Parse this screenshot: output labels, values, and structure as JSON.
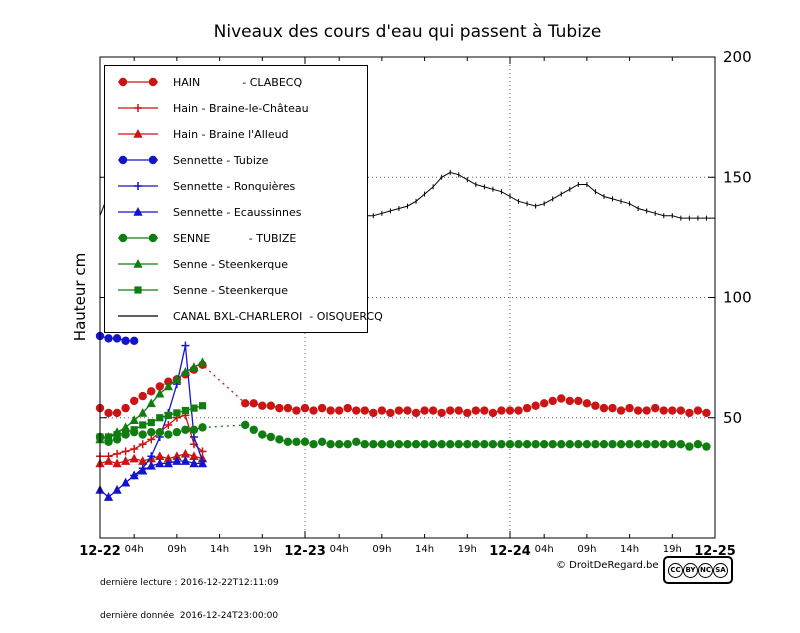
{
  "chart_data": {
    "type": "line",
    "title": "Niveaux des cours d'eau qui passent à Tubize",
    "xlabel": "",
    "ylabel": "Hauteur cm",
    "x_unit": "hours since 2016-12-22 00:00",
    "xlim_hours": [
      0,
      72
    ],
    "ylim": [
      0,
      200
    ],
    "yticks": [
      50,
      100,
      150,
      200
    ],
    "x_major_ticks": [
      {
        "t": 0,
        "label": "12-22"
      },
      {
        "t": 24,
        "label": "12-23"
      },
      {
        "t": 48,
        "label": "12-24"
      },
      {
        "t": 72,
        "label": "12-25"
      }
    ],
    "x_minor_ticks": [
      {
        "t": 4,
        "label": "04h"
      },
      {
        "t": 9,
        "label": "09h"
      },
      {
        "t": 14,
        "label": "14h"
      },
      {
        "t": 19,
        "label": "19h"
      },
      {
        "t": 28,
        "label": "04h"
      },
      {
        "t": 33,
        "label": "09h"
      },
      {
        "t": 38,
        "label": "14h"
      },
      {
        "t": 43,
        "label": "19h"
      },
      {
        "t": 52,
        "label": "04h"
      },
      {
        "t": 57,
        "label": "09h"
      },
      {
        "t": 62,
        "label": "14h"
      },
      {
        "t": 67,
        "label": "19h"
      }
    ],
    "grid": {
      "h_values": [
        50,
        100,
        150
      ],
      "v_hours": [
        24,
        48
      ]
    },
    "legend_position": "top-left",
    "series": [
      {
        "id": "hain-clabecq",
        "name": "HAIN            - CLABECQ",
        "color": "#cc1414",
        "marker": "circle",
        "line": "dotted",
        "points": [
          [
            0,
            54
          ],
          [
            1,
            52
          ],
          [
            2,
            52
          ],
          [
            3,
            54
          ],
          [
            4,
            57
          ],
          [
            5,
            59
          ],
          [
            6,
            61
          ],
          [
            7,
            63
          ],
          [
            8,
            65
          ],
          [
            9,
            66
          ],
          [
            10,
            68
          ],
          [
            11,
            70
          ],
          [
            12,
            72
          ],
          [
            17,
            56
          ],
          [
            18,
            56
          ],
          [
            19,
            55
          ],
          [
            20,
            55
          ],
          [
            21,
            54
          ],
          [
            22,
            54
          ],
          [
            23,
            53
          ],
          [
            24,
            54
          ],
          [
            25,
            53
          ],
          [
            26,
            54
          ],
          [
            27,
            53
          ],
          [
            28,
            53
          ],
          [
            29,
            54
          ],
          [
            30,
            53
          ],
          [
            31,
            53
          ],
          [
            32,
            52
          ],
          [
            33,
            53
          ],
          [
            34,
            52
          ],
          [
            35,
            53
          ],
          [
            36,
            53
          ],
          [
            37,
            52
          ],
          [
            38,
            53
          ],
          [
            39,
            53
          ],
          [
            40,
            52
          ],
          [
            41,
            53
          ],
          [
            42,
            53
          ],
          [
            43,
            52
          ],
          [
            44,
            53
          ],
          [
            45,
            53
          ],
          [
            46,
            52
          ],
          [
            47,
            53
          ],
          [
            48,
            53
          ],
          [
            49,
            53
          ],
          [
            50,
            54
          ],
          [
            51,
            55
          ],
          [
            52,
            56
          ],
          [
            53,
            57
          ],
          [
            54,
            58
          ],
          [
            55,
            57
          ],
          [
            56,
            57
          ],
          [
            57,
            56
          ],
          [
            58,
            55
          ],
          [
            59,
            54
          ],
          [
            60,
            54
          ],
          [
            61,
            53
          ],
          [
            62,
            54
          ],
          [
            63,
            53
          ],
          [
            64,
            53
          ],
          [
            65,
            54
          ],
          [
            66,
            53
          ],
          [
            67,
            53
          ],
          [
            68,
            53
          ],
          [
            69,
            52
          ],
          [
            70,
            53
          ],
          [
            71,
            52
          ]
        ]
      },
      {
        "id": "hain-braine-le-chateau",
        "name": "Hain - Braine-le-Château",
        "color": "#cc1414",
        "marker": "plus",
        "line": "solid",
        "points": [
          [
            0,
            34
          ],
          [
            1,
            34
          ],
          [
            2,
            35
          ],
          [
            3,
            36
          ],
          [
            4,
            37
          ],
          [
            5,
            39
          ],
          [
            6,
            41
          ],
          [
            7,
            44
          ],
          [
            8,
            47
          ],
          [
            9,
            50
          ],
          [
            10,
            51
          ],
          [
            11,
            39
          ],
          [
            12,
            36
          ]
        ]
      },
      {
        "id": "hain-braine-l-alleud",
        "name": "Hain - Braine l'Alleud",
        "color": "#cc1414",
        "marker": "triangle",
        "line": "solid",
        "points": [
          [
            0,
            31
          ],
          [
            1,
            32
          ],
          [
            2,
            31
          ],
          [
            3,
            32
          ],
          [
            4,
            33
          ],
          [
            5,
            32
          ],
          [
            6,
            33
          ],
          [
            7,
            34
          ],
          [
            8,
            33
          ],
          [
            9,
            34
          ],
          [
            10,
            35
          ],
          [
            11,
            34
          ],
          [
            12,
            33
          ]
        ]
      },
      {
        "id": "sennette-tubize",
        "name": "Sennette - Tubize",
        "color": "#1414cc",
        "marker": "circle",
        "line": "solid",
        "points": [
          [
            0,
            84
          ],
          [
            1,
            83
          ],
          [
            2,
            83
          ],
          [
            3,
            82
          ],
          [
            4,
            82
          ]
        ]
      },
      {
        "id": "sennette-ronquieres",
        "name": "Sennette - Ronquières",
        "color": "#1414cc",
        "marker": "plus",
        "line": "solid",
        "points": [
          [
            4,
            26
          ],
          [
            5,
            29
          ],
          [
            6,
            34
          ],
          [
            7,
            42
          ],
          [
            8,
            52
          ],
          [
            9,
            64
          ],
          [
            10,
            80
          ],
          [
            11,
            42
          ],
          [
            12,
            32
          ]
        ]
      },
      {
        "id": "sennette-ecaussinnes",
        "name": "Sennette - Ecaussinnes",
        "color": "#1414cc",
        "marker": "triangle",
        "line": "solid",
        "points": [
          [
            0,
            20
          ],
          [
            1,
            17
          ],
          [
            2,
            20
          ],
          [
            3,
            23
          ],
          [
            4,
            26
          ],
          [
            5,
            28
          ],
          [
            6,
            30
          ],
          [
            7,
            31
          ],
          [
            8,
            31
          ],
          [
            9,
            32
          ],
          [
            10,
            32
          ],
          [
            11,
            31
          ],
          [
            12,
            31
          ]
        ]
      },
      {
        "id": "senne-tubize",
        "name": "SENNE           - TUBIZE",
        "color": "#0f7d0f",
        "marker": "circle",
        "line": "dotted",
        "points": [
          [
            0,
            42
          ],
          [
            1,
            40
          ],
          [
            2,
            41
          ],
          [
            3,
            43
          ],
          [
            4,
            44
          ],
          [
            5,
            43
          ],
          [
            6,
            44
          ],
          [
            7,
            44
          ],
          [
            8,
            43
          ],
          [
            9,
            44
          ],
          [
            10,
            45
          ],
          [
            11,
            45
          ],
          [
            12,
            46
          ],
          [
            17,
            47
          ],
          [
            18,
            45
          ],
          [
            19,
            43
          ],
          [
            20,
            42
          ],
          [
            21,
            41
          ],
          [
            22,
            40
          ],
          [
            23,
            40
          ],
          [
            24,
            40
          ],
          [
            25,
            39
          ],
          [
            26,
            40
          ],
          [
            27,
            39
          ],
          [
            28,
            39
          ],
          [
            29,
            39
          ],
          [
            30,
            40
          ],
          [
            31,
            39
          ],
          [
            32,
            39
          ],
          [
            33,
            39
          ],
          [
            34,
            39
          ],
          [
            35,
            39
          ],
          [
            36,
            39
          ],
          [
            37,
            39
          ],
          [
            38,
            39
          ],
          [
            39,
            39
          ],
          [
            40,
            39
          ],
          [
            41,
            39
          ],
          [
            42,
            39
          ],
          [
            43,
            39
          ],
          [
            44,
            39
          ],
          [
            45,
            39
          ],
          [
            46,
            39
          ],
          [
            47,
            39
          ],
          [
            48,
            39
          ],
          [
            49,
            39
          ],
          [
            50,
            39
          ],
          [
            51,
            39
          ],
          [
            52,
            39
          ],
          [
            53,
            39
          ],
          [
            54,
            39
          ],
          [
            55,
            39
          ],
          [
            56,
            39
          ],
          [
            57,
            39
          ],
          [
            58,
            39
          ],
          [
            59,
            39
          ],
          [
            60,
            39
          ],
          [
            61,
            39
          ],
          [
            62,
            39
          ],
          [
            63,
            39
          ],
          [
            64,
            39
          ],
          [
            65,
            39
          ],
          [
            66,
            39
          ],
          [
            67,
            39
          ],
          [
            68,
            39
          ],
          [
            69,
            38
          ],
          [
            70,
            39
          ],
          [
            71,
            38
          ]
        ]
      },
      {
        "id": "senne-steenkerque-1",
        "name": "Senne - Steenkerque",
        "color": "#0f7d0f",
        "marker": "triangle",
        "line": "solid",
        "points": [
          [
            0,
            41
          ],
          [
            1,
            42
          ],
          [
            2,
            44
          ],
          [
            3,
            46
          ],
          [
            4,
            49
          ],
          [
            5,
            52
          ],
          [
            6,
            56
          ],
          [
            7,
            60
          ],
          [
            8,
            63
          ],
          [
            9,
            66
          ],
          [
            10,
            69
          ],
          [
            11,
            71
          ],
          [
            12,
            73
          ]
        ]
      },
      {
        "id": "senne-steenkerque-2",
        "name": "Senne - Steenkerque",
        "color": "#0f7d0f",
        "marker": "square",
        "line": "solid",
        "points": [
          [
            0,
            42
          ],
          [
            1,
            42
          ],
          [
            2,
            43
          ],
          [
            3,
            44
          ],
          [
            4,
            45
          ],
          [
            5,
            47
          ],
          [
            6,
            48
          ],
          [
            7,
            50
          ],
          [
            8,
            51
          ],
          [
            9,
            52
          ],
          [
            10,
            53
          ],
          [
            11,
            54
          ],
          [
            12,
            55
          ]
        ]
      },
      {
        "id": "canal-bxl-charleroi-oisquercq",
        "name": "CANAL BXL-CHARLEROI  - OISQUERCQ",
        "color": "#000000",
        "marker": "tick",
        "line": "solid",
        "points": [
          [
            0,
            134
          ],
          [
            1,
            143
          ],
          [
            2,
            138
          ],
          [
            3,
            136
          ],
          [
            4,
            135
          ],
          [
            5,
            134
          ],
          [
            6,
            134
          ],
          [
            7,
            133
          ],
          [
            8,
            133
          ],
          [
            9,
            132
          ],
          [
            10,
            132
          ],
          [
            11,
            132
          ],
          [
            12,
            131
          ],
          [
            13,
            131
          ],
          [
            14,
            131
          ],
          [
            15,
            131
          ],
          [
            16,
            131
          ],
          [
            17,
            131
          ],
          [
            18,
            132
          ],
          [
            19,
            132
          ],
          [
            20,
            132
          ],
          [
            21,
            132
          ],
          [
            22,
            132
          ],
          [
            23,
            132
          ],
          [
            24,
            132
          ],
          [
            25,
            132
          ],
          [
            26,
            133
          ],
          [
            27,
            133
          ],
          [
            28,
            133
          ],
          [
            29,
            133
          ],
          [
            30,
            133
          ],
          [
            31,
            134
          ],
          [
            32,
            134
          ],
          [
            33,
            135
          ],
          [
            34,
            136
          ],
          [
            35,
            137
          ],
          [
            36,
            138
          ],
          [
            37,
            140
          ],
          [
            38,
            143
          ],
          [
            39,
            146
          ],
          [
            40,
            150
          ],
          [
            41,
            152
          ],
          [
            42,
            151
          ],
          [
            43,
            149
          ],
          [
            44,
            147
          ],
          [
            45,
            146
          ],
          [
            46,
            145
          ],
          [
            47,
            144
          ],
          [
            48,
            142
          ],
          [
            49,
            140
          ],
          [
            50,
            139
          ],
          [
            51,
            138
          ],
          [
            52,
            139
          ],
          [
            53,
            141
          ],
          [
            54,
            143
          ],
          [
            55,
            145
          ],
          [
            56,
            147
          ],
          [
            57,
            147
          ],
          [
            58,
            144
          ],
          [
            59,
            142
          ],
          [
            60,
            141
          ],
          [
            61,
            140
          ],
          [
            62,
            139
          ],
          [
            63,
            137
          ],
          [
            64,
            136
          ],
          [
            65,
            135
          ],
          [
            66,
            134
          ],
          [
            67,
            134
          ],
          [
            68,
            133
          ],
          [
            69,
            133
          ],
          [
            70,
            133
          ],
          [
            71,
            133
          ],
          [
            72,
            133
          ]
        ]
      }
    ]
  },
  "page": {
    "footer": {
      "last_reading": "dernière lecture : 2016-12-22T12:11:09",
      "last_data": "dernière donnée  2016-12-24T23:00:00",
      "copyright": "© DroitDeRegard.be"
    },
    "license_icons": [
      "CC",
      "BY",
      "NC",
      "SA"
    ]
  }
}
